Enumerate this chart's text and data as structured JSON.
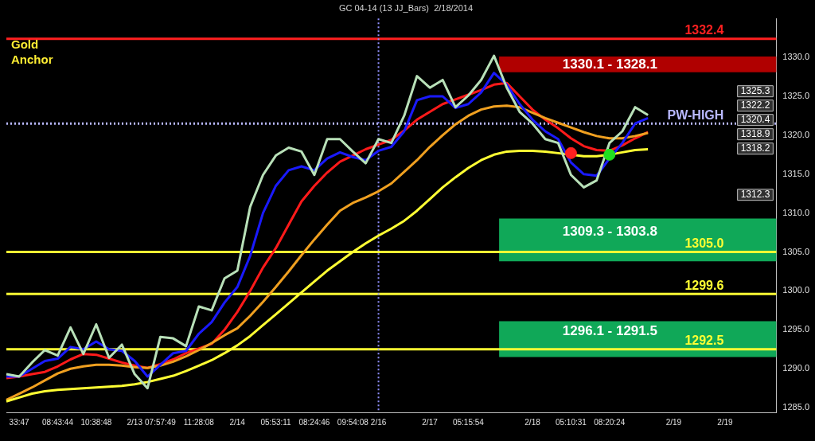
{
  "chart_data": {
    "type": "line",
    "title": "GC 04-14 (13 JJ_Bars)  2/18/2014",
    "categories": [
      null,
      "33:47",
      null,
      null,
      "08:43:44",
      null,
      null,
      "10:38:48",
      null,
      null,
      "2/13",
      null,
      "07:57:49",
      null,
      null,
      "11:28:08",
      null,
      null,
      "2/14",
      null,
      null,
      "05:53:11",
      null,
      null,
      "08:24:46",
      null,
      null,
      "09:54:08",
      null,
      "2/16",
      null,
      null,
      null,
      "2/17",
      null,
      null,
      "05:15:54",
      null,
      null,
      null,
      null,
      "2/18",
      null,
      null,
      "05:10:31",
      null,
      null,
      "08:20:24",
      null,
      null,
      null,
      null,
      "2/19",
      null,
      null,
      null,
      "2/19",
      null,
      null,
      null,
      null
    ],
    "series": [
      {
        "color": "#b8e0b8",
        "values": [
          1289.3,
          1289.0,
          1290.8,
          1292.4,
          1291.7,
          1295.3,
          1291.9,
          1295.7,
          1291.4,
          1293.1,
          1289.3,
          1287.5,
          1294.1,
          1293.9,
          1292.9,
          1298.0,
          1297.5,
          1301.6,
          1302.6,
          1310.8,
          1314.9,
          1317.4,
          1318.4,
          1317.9,
          1314.9,
          1319.5,
          1319.5,
          1317.9,
          1316.4,
          1319.5,
          1319.0,
          1322.5,
          1327.6,
          1326.1,
          1327.1,
          1323.6,
          1325.1,
          1327.1,
          1330.2,
          1326.1,
          1323.0,
          1321.5,
          1319.5,
          1319.0,
          1314.9,
          1313.3,
          1314.2,
          1319.0,
          1320.5,
          1323.6,
          1322.6,
          null,
          null,
          null,
          null,
          null,
          null,
          null,
          null,
          null,
          null
        ]
      },
      {
        "color": "#1a1aff",
        "values": [
          1289.0,
          1289.0,
          1290.0,
          1291.0,
          1291.3,
          1292.8,
          1292.5,
          1293.5,
          1292.5,
          1292.3,
          1291.0,
          1289.0,
          1290.5,
          1292.0,
          1292.3,
          1294.5,
          1296.0,
          1298.5,
          1300.5,
          1304.5,
          1310.0,
          1313.5,
          1315.5,
          1316.0,
          1315.5,
          1317.0,
          1317.8,
          1317.2,
          1316.8,
          1318.0,
          1318.5,
          1320.5,
          1324.5,
          1325.0,
          1325.0,
          1323.5,
          1324.0,
          1325.5,
          1328.0,
          1326.5,
          1324.0,
          1322.0,
          1320.5,
          1319.5,
          1316.5,
          1315.0,
          1314.8,
          1317.0,
          1319.0,
          1321.5,
          1322.2,
          null,
          null,
          null,
          null,
          null,
          null,
          null,
          null,
          null,
          null
        ]
      },
      {
        "color": "#ffff33",
        "values": [
          1285.8,
          1286.3,
          1286.8,
          1287.1,
          1287.3,
          1287.4,
          1287.5,
          1287.6,
          1287.7,
          1287.8,
          1288.0,
          1288.3,
          1288.7,
          1289.1,
          1289.7,
          1290.4,
          1291.1,
          1292.0,
          1293.0,
          1294.2,
          1295.6,
          1297.0,
          1298.4,
          1299.8,
          1301.2,
          1302.6,
          1303.8,
          1305.0,
          1306.1,
          1307.1,
          1308.0,
          1309.0,
          1310.3,
          1311.8,
          1313.3,
          1314.6,
          1315.8,
          1316.8,
          1317.5,
          1317.9,
          1318.0,
          1318.0,
          1317.9,
          1317.7,
          1317.5,
          1317.3,
          1317.3,
          1317.5,
          1317.8,
          1318.1,
          1318.2,
          null,
          null,
          null,
          null,
          null,
          null,
          null,
          null,
          null,
          null
        ]
      },
      {
        "color": "#f0a020",
        "values": [
          1286.0,
          1286.8,
          1287.6,
          1288.5,
          1289.4,
          1290.0,
          1290.3,
          1290.5,
          1290.5,
          1290.4,
          1290.2,
          1290.1,
          1290.4,
          1290.9,
          1291.6,
          1292.4,
          1293.3,
          1294.3,
          1295.2,
          1296.8,
          1298.6,
          1300.5,
          1302.5,
          1304.6,
          1306.6,
          1308.5,
          1310.3,
          1311.3,
          1312.0,
          1312.8,
          1313.8,
          1315.3,
          1316.8,
          1318.5,
          1320.0,
          1321.4,
          1322.5,
          1323.3,
          1323.7,
          1323.8,
          1323.6,
          1322.9,
          1322.2,
          1321.6,
          1321.0,
          1320.4,
          1319.9,
          1319.6,
          1319.6,
          1319.9,
          1320.3,
          null,
          null,
          null,
          null,
          null,
          null,
          null,
          null,
          null,
          null
        ]
      },
      {
        "color": "#ff1a1a",
        "values": [
          1288.8,
          1289.0,
          1289.3,
          1289.6,
          1290.3,
          1291.2,
          1291.9,
          1291.8,
          1291.3,
          1290.8,
          1290.4,
          1290.1,
          1290.6,
          1291.2,
          1292.0,
          1292.6,
          1293.2,
          1295.0,
          1297.3,
          1300.0,
          1303.0,
          1305.5,
          1308.5,
          1311.5,
          1313.5,
          1315.2,
          1316.6,
          1317.4,
          1318.2,
          1318.8,
          1319.4,
          1320.6,
          1322.0,
          1323.0,
          1324.0,
          1324.6,
          1325.2,
          1325.8,
          1326.5,
          1326.7,
          1325.0,
          1323.3,
          1322.0,
          1320.9,
          1319.6,
          1318.6,
          1318.1,
          1318.0,
          1318.7,
          1319.6,
          1320.4,
          null,
          null,
          null,
          null,
          null,
          null,
          null,
          null,
          null,
          null
        ]
      },
      {
        "type": "scatter",
        "marker": "circle",
        "color": "#ff2020",
        "values": [
          null,
          null,
          null,
          null,
          null,
          null,
          null,
          null,
          null,
          null,
          null,
          null,
          null,
          null,
          null,
          null,
          null,
          null,
          null,
          null,
          null,
          null,
          null,
          null,
          null,
          null,
          null,
          null,
          null,
          null,
          null,
          null,
          null,
          null,
          null,
          null,
          null,
          null,
          null,
          null,
          null,
          null,
          null,
          null,
          1317.7,
          null,
          null,
          null,
          null,
          null,
          null,
          null,
          null,
          null,
          null,
          null,
          null,
          null,
          null,
          null,
          null
        ]
      },
      {
        "type": "scatter",
        "marker": "circle",
        "color": "#20e020",
        "values": [
          null,
          null,
          null,
          null,
          null,
          null,
          null,
          null,
          null,
          null,
          null,
          null,
          null,
          null,
          null,
          null,
          null,
          null,
          null,
          null,
          null,
          null,
          null,
          null,
          null,
          null,
          null,
          null,
          null,
          null,
          null,
          null,
          null,
          null,
          null,
          null,
          null,
          null,
          null,
          null,
          null,
          null,
          null,
          null,
          null,
          null,
          null,
          1317.5,
          null,
          null,
          null,
          null,
          null,
          null,
          null,
          null,
          null,
          null,
          null,
          null,
          null
        ]
      }
    ],
    "ylim": [
      1284.4,
      1335.0
    ],
    "yticks": [
      {
        "value": 1285,
        "label": "1285.0"
      },
      {
        "value": 1290,
        "label": "1290.0"
      },
      {
        "value": 1295,
        "label": "1295.0"
      },
      {
        "value": 1300,
        "label": "1300.0"
      },
      {
        "value": 1305,
        "label": "1305.0"
      },
      {
        "value": 1310,
        "label": "1310.0"
      },
      {
        "value": 1315,
        "label": "1315.0"
      },
      {
        "value": 1320,
        "label": "1320.0"
      },
      {
        "value": 1325,
        "label": "1325.0"
      },
      {
        "value": 1330,
        "label": "1330.0"
      }
    ],
    "grid": false,
    "legend": false,
    "marker": "none",
    "line_style": "solid",
    "bands": [
      {
        "axis": "y",
        "from": 1328.1,
        "to": 1330.1,
        "label": "1330.1 - 1328.1",
        "color": "#b00000"
      },
      {
        "axis": "y",
        "from": 1303.8,
        "to": 1309.3,
        "label": "1309.3 - 1303.8",
        "color": "#10a858"
      },
      {
        "axis": "y",
        "from": 1291.5,
        "to": 1296.1,
        "label": "1296.1 - 1291.5",
        "color": "#10a858"
      }
    ],
    "ref_lines": [
      {
        "axis": "y",
        "value": 1332.4,
        "label": "1332.4",
        "color": "#ff2020",
        "line_style": "solid"
      },
      {
        "axis": "y",
        "value": 1321.5,
        "label": "PW-HIGH",
        "color": "#b8b8ff",
        "line_style": "dotted"
      },
      {
        "axis": "y",
        "value": 1305.0,
        "label": "1305.0",
        "color": "#ffff33",
        "line_style": "solid"
      },
      {
        "axis": "y",
        "value": 1299.6,
        "label": "1299.6",
        "color": "#ffff33",
        "line_style": "solid"
      },
      {
        "axis": "y",
        "value": 1292.5,
        "label": "1292.5",
        "color": "#ffff33",
        "line_style": "solid"
      },
      {
        "axis": "x",
        "value": "2/16",
        "color": "#9090ff",
        "line_style": "dotted"
      }
    ],
    "annotations": [
      "Gold",
      "Anchor",
      "1325.3",
      "1322.2",
      "1320.4",
      "1318.9",
      "1318.2",
      "1312.3"
    ]
  }
}
